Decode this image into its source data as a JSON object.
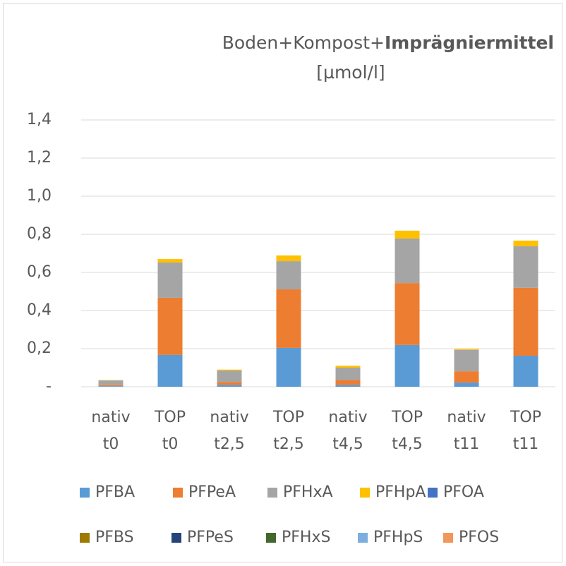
{
  "chart_data": {
    "type": "stacked_bar",
    "title": [
      "Boden+Kompost+",
      "Imprägniermittel"
    ],
    "subtitle": "[µmol/l]",
    "categories": [
      [
        "nativ",
        "t0"
      ],
      [
        "TOP",
        "t0"
      ],
      [
        "nativ",
        "t2,5"
      ],
      [
        "TOP",
        "t2,5"
      ],
      [
        "nativ",
        "t4,5"
      ],
      [
        "TOP",
        "t4,5"
      ],
      [
        "nativ",
        "t11"
      ],
      [
        "TOP",
        "t11"
      ]
    ],
    "series": [
      {
        "name": "PFBA",
        "color": "#5b9bd5",
        "values": [
          0.003,
          0.167,
          0.01,
          0.204,
          0.01,
          0.219,
          0.022,
          0.163
        ]
      },
      {
        "name": "PFPeA",
        "color": "#ed7d31",
        "values": [
          0.005,
          0.3,
          0.015,
          0.307,
          0.025,
          0.325,
          0.059,
          0.356
        ]
      },
      {
        "name": "PFHxA",
        "color": "#a5a5a5",
        "values": [
          0.025,
          0.185,
          0.06,
          0.148,
          0.065,
          0.234,
          0.112,
          0.218
        ]
      },
      {
        "name": "PFHpA",
        "color": "#ffc000",
        "values": [
          0.002,
          0.018,
          0.005,
          0.03,
          0.01,
          0.041,
          0.005,
          0.03
        ]
      },
      {
        "name": "PFOA",
        "color": "#4472c4",
        "values": [
          0,
          0,
          0,
          0,
          0,
          0,
          0,
          0
        ]
      },
      {
        "name": "PFBS",
        "color": "#9e7a00",
        "values": [
          0,
          0,
          0,
          0,
          0,
          0,
          0,
          0
        ]
      },
      {
        "name": "PFPeS",
        "color": "#264478",
        "values": [
          0,
          0,
          0,
          0,
          0,
          0,
          0,
          0
        ]
      },
      {
        "name": "PFHxS",
        "color": "#43682b",
        "values": [
          0,
          0,
          0,
          0,
          0,
          0,
          0,
          0
        ]
      },
      {
        "name": "PFHpS",
        "color": "#7cafdd",
        "values": [
          0,
          0,
          0,
          0,
          0,
          0,
          0,
          0
        ]
      },
      {
        "name": "PFOS",
        "color": "#f1975a",
        "values": [
          0,
          0,
          0,
          0,
          0,
          0,
          0,
          0
        ]
      }
    ],
    "ylim": [
      0,
      1.4
    ],
    "yticks": [
      {
        "value": 0,
        "label": "-"
      },
      {
        "value": 0.2,
        "label": "0,2"
      },
      {
        "value": 0.4,
        "label": "0,4"
      },
      {
        "value": 0.6,
        "label": "0,6"
      },
      {
        "value": 0.8,
        "label": "0,8"
      },
      {
        "value": 1.0,
        "label": "1,0"
      },
      {
        "value": 1.2,
        "label": "1,2"
      },
      {
        "value": 1.4,
        "label": "1,4"
      }
    ],
    "grid": true,
    "legend": "bottom"
  }
}
